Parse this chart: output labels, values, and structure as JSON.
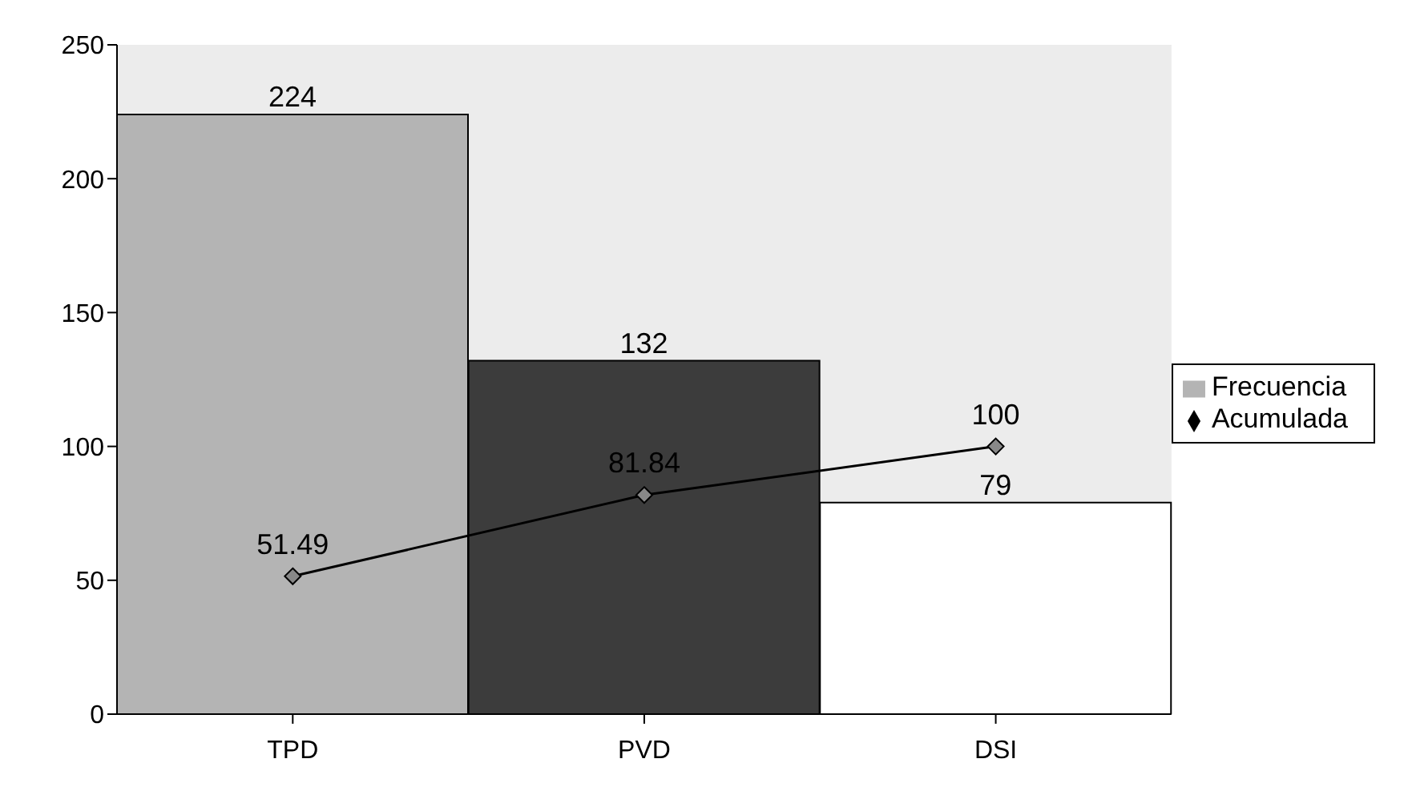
{
  "chart_data": {
    "type": "bar",
    "categories": [
      "TPD",
      "PVD",
      "DSI"
    ],
    "series": [
      {
        "name": "Frecuencia",
        "colors": [
          "#b4b4b4",
          "#3c3c3c",
          "#ffffff"
        ],
        "color": "#b4b4b4",
        "values": [
          224,
          132,
          79
        ]
      },
      {
        "name": "Acumulada",
        "type": "line",
        "color": "#000000",
        "values": [
          51.49,
          81.84,
          100
        ]
      }
    ],
    "ylim": [
      0,
      250
    ],
    "yticks": [
      0,
      50,
      100,
      150,
      200,
      250
    ],
    "grid": false,
    "legend": "right",
    "marker": "diamond",
    "data_labels": true
  }
}
